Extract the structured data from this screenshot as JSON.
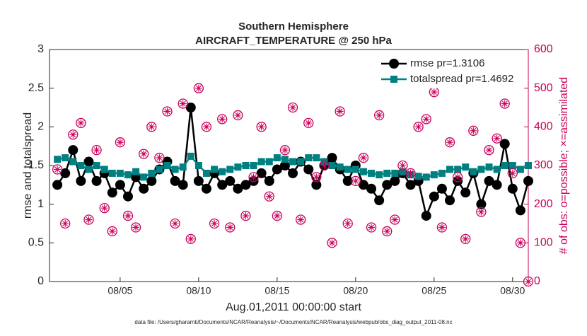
{
  "chart_data": {
    "type": "line",
    "title": "Southern Hemisphere",
    "subtitle": "AIRCRAFT_TEMPERATURE @ 250 hPa",
    "xlabel": "Aug.01,2011 00:00:00 start",
    "ylabel": "rmse and totalspread",
    "y2label": "# of obs: o=possible; ×=assimilated",
    "footnote": "data file: /Users/gharamti/Documents/NCAR/Reanalysis/~/Documents/NCAR/Reanalysis/webpub/obs_diag_output_2011-08.nc",
    "xlim": [
      0.5,
      31
    ],
    "xticks": [
      {
        "value": 5,
        "label": "08/05"
      },
      {
        "value": 10,
        "label": "08/10"
      },
      {
        "value": 15,
        "label": "08/15"
      },
      {
        "value": 20,
        "label": "08/20"
      },
      {
        "value": 25,
        "label": "08/25"
      },
      {
        "value": 30,
        "label": "08/30"
      }
    ],
    "ylim": [
      0,
      3
    ],
    "yticks": [
      0,
      0.5,
      1,
      1.5,
      2,
      2.5,
      3
    ],
    "y2lim": [
      0,
      600
    ],
    "y2ticks": [
      0,
      100,
      200,
      300,
      400,
      500,
      600
    ],
    "y2color": "#c8005a",
    "legend": "upper right",
    "x": [
      1,
      1.5,
      2,
      2.5,
      3,
      3.5,
      4,
      4.5,
      5,
      5.5,
      6,
      6.5,
      7,
      7.5,
      8,
      8.5,
      9,
      9.5,
      10,
      10.5,
      11,
      11.5,
      12,
      12.5,
      13,
      13.5,
      14,
      14.5,
      15,
      15.5,
      16,
      16.5,
      17,
      17.5,
      18,
      18.5,
      19,
      19.5,
      20,
      20.5,
      21,
      21.5,
      22,
      22.5,
      23,
      23.5,
      24,
      24.5,
      25,
      25.5,
      26,
      26.5,
      27,
      27.5,
      28,
      28.5,
      29,
      29.5,
      30,
      30.5,
      31
    ],
    "series": [
      {
        "name": "rmse pr=1.3106",
        "color": "#000000",
        "marker": "circle",
        "values": [
          1.25,
          1.4,
          1.7,
          1.3,
          1.55,
          1.3,
          1.4,
          1.15,
          1.25,
          1.1,
          1.35,
          1.2,
          1.3,
          1.45,
          1.55,
          1.3,
          1.25,
          2.25,
          1.3,
          1.2,
          1.4,
          1.25,
          1.3,
          1.2,
          1.25,
          1.3,
          1.4,
          1.3,
          1.45,
          1.5,
          1.4,
          1.55,
          1.45,
          1.25,
          1.5,
          1.6,
          1.45,
          1.3,
          1.5,
          1.25,
          1.2,
          1.05,
          1.25,
          1.3,
          1.4,
          1.25,
          1.3,
          0.85,
          1.1,
          1.2,
          1.05,
          1.3,
          1.15,
          1.4,
          1.0,
          1.3,
          1.25,
          1.78,
          1.2,
          0.92,
          1.3
        ]
      },
      {
        "name": "totalspread pr=1.4692",
        "color": "#008080",
        "marker": "square",
        "values": [
          1.58,
          1.6,
          1.55,
          1.5,
          1.45,
          1.5,
          1.45,
          1.4,
          1.4,
          1.38,
          1.42,
          1.35,
          1.4,
          1.45,
          1.5,
          1.45,
          1.48,
          1.62,
          1.5,
          1.4,
          1.45,
          1.42,
          1.45,
          1.48,
          1.5,
          1.5,
          1.55,
          1.55,
          1.6,
          1.58,
          1.55,
          1.55,
          1.6,
          1.6,
          1.55,
          1.5,
          1.48,
          1.45,
          1.45,
          1.42,
          1.4,
          1.38,
          1.4,
          1.4,
          1.42,
          1.38,
          1.36,
          1.35,
          1.38,
          1.4,
          1.45,
          1.45,
          1.48,
          1.42,
          1.45,
          1.48,
          1.45,
          1.5,
          1.5,
          1.45,
          1.5
        ]
      },
      {
        "name": "possible",
        "color": "#c8005a",
        "marker": "open-circle",
        "axis": "y2",
        "values": [
          290,
          150,
          380,
          410,
          160,
          340,
          190,
          130,
          360,
          170,
          140,
          330,
          400,
          320,
          440,
          150,
          460,
          110,
          500,
          400,
          150,
          420,
          140,
          430,
          170,
          270,
          400,
          220,
          170,
          340,
          450,
          160,
          410,
          270,
          300,
          100,
          440,
          150,
          260,
          320,
          140,
          430,
          130,
          160,
          300,
          280,
          400,
          420,
          490,
          140,
          360,
          270,
          110,
          390,
          180,
          340,
          370,
          460,
          280,
          100,
          0
        ]
      },
      {
        "name": "assimilated",
        "color": "#c8005a",
        "marker": "asterisk",
        "axis": "y2",
        "values": [
          290,
          150,
          380,
          410,
          160,
          340,
          190,
          130,
          360,
          170,
          140,
          330,
          400,
          320,
          440,
          150,
          460,
          110,
          500,
          400,
          150,
          420,
          140,
          430,
          170,
          270,
          400,
          220,
          170,
          340,
          450,
          160,
          410,
          270,
          300,
          100,
          440,
          150,
          260,
          320,
          140,
          430,
          130,
          160,
          300,
          280,
          400,
          420,
          490,
          140,
          360,
          270,
          110,
          390,
          180,
          340,
          370,
          460,
          280,
          100,
          0
        ]
      }
    ]
  }
}
